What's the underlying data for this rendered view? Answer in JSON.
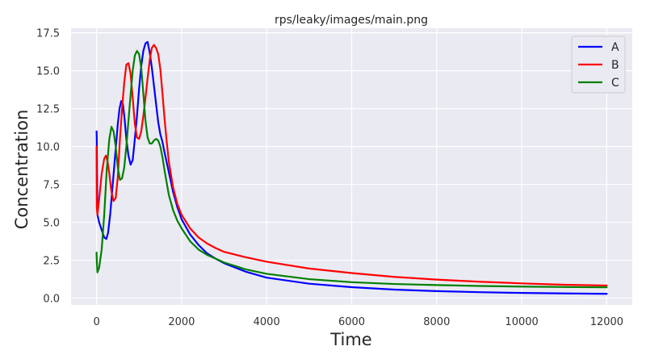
{
  "chart_data": {
    "type": "line",
    "title": "rps/leaky/images/main.png",
    "xlabel": "Time",
    "ylabel": "Concentration",
    "xlim": [
      -600,
      12600
    ],
    "ylim": [
      -0.45,
      17.8
    ],
    "xticks": [
      0,
      2000,
      4000,
      6000,
      8000,
      10000,
      12000
    ],
    "yticks": [
      0.0,
      2.5,
      5.0,
      7.5,
      10.0,
      12.5,
      15.0,
      17.5
    ],
    "xtick_labels": [
      "0",
      "2000",
      "4000",
      "6000",
      "8000",
      "10000",
      "12000"
    ],
    "ytick_labels": [
      "0.0",
      "2.5",
      "5.0",
      "7.5",
      "10.0",
      "12.5",
      "15.0",
      "17.5"
    ],
    "grid": true,
    "legend_position": "top-right",
    "background": "#eaeaf2",
    "series": [
      {
        "name": "A",
        "color": "#0000ff",
        "x": [
          0,
          5,
          20,
          60,
          120,
          180,
          230,
          270,
          320,
          380,
          440,
          500,
          540,
          580,
          620,
          660,
          700,
          750,
          800,
          850,
          900,
          950,
          1000,
          1050,
          1100,
          1150,
          1200,
          1250,
          1300,
          1350,
          1400,
          1450,
          1500,
          1550,
          1600,
          1700,
          1800,
          1900,
          2000,
          2200,
          2400,
          2600,
          2800,
          3000,
          3500,
          4000,
          5000,
          6000,
          7000,
          8000,
          9000,
          10000,
          11000,
          12000
        ],
        "y": [
          11.0,
          10.5,
          5.5,
          5.0,
          4.5,
          4.0,
          3.9,
          4.3,
          5.5,
          7.5,
          9.5,
          11.5,
          12.5,
          13.0,
          12.8,
          11.8,
          10.5,
          9.4,
          8.8,
          9.1,
          10.5,
          12.0,
          13.8,
          15.3,
          16.3,
          16.8,
          16.9,
          16.2,
          15.2,
          14.0,
          12.8,
          11.6,
          10.8,
          10.3,
          9.6,
          8.3,
          7.0,
          6.0,
          5.2,
          4.2,
          3.5,
          2.95,
          2.6,
          2.3,
          1.75,
          1.35,
          0.95,
          0.72,
          0.56,
          0.46,
          0.39,
          0.34,
          0.31,
          0.28
        ]
      },
      {
        "name": "B",
        "color": "#ff0000",
        "x": [
          0,
          5,
          20,
          60,
          120,
          180,
          220,
          260,
          300,
          350,
          400,
          450,
          500,
          550,
          600,
          650,
          700,
          750,
          800,
          850,
          900,
          950,
          1000,
          1050,
          1100,
          1150,
          1200,
          1250,
          1300,
          1350,
          1400,
          1450,
          1500,
          1550,
          1600,
          1650,
          1700,
          1800,
          1900,
          2000,
          2200,
          2400,
          2600,
          2800,
          3000,
          3500,
          4000,
          5000,
          6000,
          7000,
          8000,
          9000,
          10000,
          11000,
          12000
        ],
        "y": [
          10.0,
          6.0,
          5.5,
          6.5,
          8.2,
          9.2,
          9.4,
          9.0,
          8.2,
          7.0,
          6.4,
          6.6,
          8.0,
          10.5,
          12.5,
          14.2,
          15.4,
          15.5,
          14.8,
          13.2,
          11.5,
          10.6,
          10.5,
          11.0,
          12.0,
          13.2,
          14.5,
          15.7,
          16.5,
          16.7,
          16.5,
          16.1,
          15.1,
          13.5,
          11.8,
          10.3,
          9.0,
          7.3,
          6.2,
          5.5,
          4.6,
          4.0,
          3.6,
          3.3,
          3.05,
          2.7,
          2.4,
          1.95,
          1.65,
          1.4,
          1.22,
          1.08,
          0.97,
          0.88,
          0.83
        ]
      },
      {
        "name": "C",
        "color": "#008000",
        "x": [
          0,
          5,
          20,
          60,
          120,
          180,
          240,
          300,
          350,
          400,
          450,
          500,
          550,
          600,
          650,
          700,
          750,
          800,
          850,
          900,
          950,
          1000,
          1050,
          1100,
          1150,
          1200,
          1250,
          1300,
          1350,
          1400,
          1450,
          1500,
          1550,
          1600,
          1650,
          1700,
          1800,
          1900,
          2000,
          2200,
          2400,
          2600,
          2800,
          3000,
          3500,
          4000,
          5000,
          6000,
          7000,
          8000,
          9000,
          10000,
          11000,
          12000
        ],
        "y": [
          3.0,
          2.5,
          1.7,
          2.0,
          3.2,
          5.5,
          8.5,
          10.5,
          11.3,
          11.0,
          10.0,
          8.6,
          7.8,
          7.9,
          8.6,
          10.0,
          11.7,
          13.4,
          15.0,
          16.0,
          16.3,
          16.1,
          15.2,
          13.5,
          11.7,
          10.6,
          10.2,
          10.2,
          10.4,
          10.5,
          10.4,
          10.0,
          9.3,
          8.4,
          7.6,
          6.8,
          5.8,
          5.1,
          4.6,
          3.75,
          3.2,
          2.85,
          2.6,
          2.35,
          1.9,
          1.6,
          1.25,
          1.05,
          0.93,
          0.86,
          0.8,
          0.76,
          0.73,
          0.71
        ]
      }
    ]
  }
}
